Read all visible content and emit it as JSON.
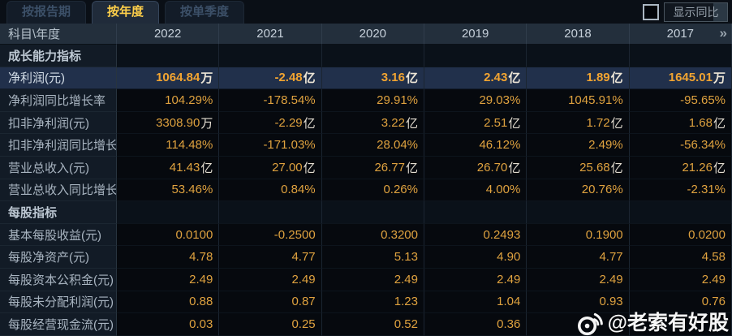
{
  "tabs": [
    {
      "label": "按报告期",
      "active": false
    },
    {
      "label": "按年度",
      "active": true
    },
    {
      "label": "按单季度",
      "active": false
    }
  ],
  "controls": {
    "show_yoy_label": "显示同比",
    "checkbox_checked": false
  },
  "table": {
    "corner_label": "科目\\年度",
    "years": [
      "2022",
      "2021",
      "2020",
      "2019",
      "2018",
      "2017"
    ],
    "more_columns_icon": "»",
    "rows": [
      {
        "type": "section",
        "label": "成长能力指标"
      },
      {
        "type": "data",
        "label": "净利润(元)",
        "highlight": true,
        "values": [
          "1064.84万",
          "-2.48亿",
          "3.16亿",
          "2.43亿",
          "1.89亿",
          "1645.01万"
        ]
      },
      {
        "type": "data",
        "label": "净利润同比增长率",
        "values": [
          "104.29%",
          "-178.54%",
          "29.91%",
          "29.03%",
          "1045.91%",
          "-95.65%"
        ]
      },
      {
        "type": "data",
        "label": "扣非净利润(元)",
        "values": [
          "3308.90万",
          "-2.29亿",
          "3.22亿",
          "2.51亿",
          "1.72亿",
          "1.68亿"
        ]
      },
      {
        "type": "data",
        "label": "扣非净利润同比增长率",
        "values": [
          "114.48%",
          "-171.03%",
          "28.04%",
          "46.12%",
          "2.49%",
          "-56.34%"
        ]
      },
      {
        "type": "data",
        "label": "营业总收入(元)",
        "values": [
          "41.43亿",
          "27.00亿",
          "26.77亿",
          "26.70亿",
          "25.68亿",
          "21.26亿"
        ]
      },
      {
        "type": "data",
        "label": "营业总收入同比增长率",
        "values": [
          "53.46%",
          "0.84%",
          "0.26%",
          "4.00%",
          "20.76%",
          "-2.31%"
        ]
      },
      {
        "type": "section",
        "label": "每股指标"
      },
      {
        "type": "data",
        "label": "基本每股收益(元)",
        "values": [
          "0.0100",
          "-0.2500",
          "0.3200",
          "0.2493",
          "0.1900",
          "0.0200"
        ]
      },
      {
        "type": "data",
        "label": "每股净资产(元)",
        "values": [
          "4.78",
          "4.77",
          "5.13",
          "4.90",
          "4.77",
          "4.58"
        ]
      },
      {
        "type": "data",
        "label": "每股资本公积金(元)",
        "values": [
          "2.49",
          "2.49",
          "2.49",
          "2.49",
          "2.49",
          "2.49"
        ]
      },
      {
        "type": "data",
        "label": "每股未分配利润(元)",
        "values": [
          "0.88",
          "0.87",
          "1.23",
          "1.04",
          "0.93",
          "0.76"
        ]
      },
      {
        "type": "data",
        "label": "每股经营现金流(元)",
        "values": [
          "0.03",
          "0.25",
          "0.52",
          "0.36",
          "",
          ""
        ]
      }
    ]
  },
  "watermark": {
    "handle": "@老索有好股",
    "icon": "weibo-icon"
  },
  "colors": {
    "value_orange": "#dfa23f",
    "highlight_value_orange": "#f2a431",
    "tab_active_gold": "#ffd04a",
    "highlight_row_bg": "#21304b",
    "header_bg": "#232f3c",
    "label_col_bg": "#121b26",
    "data_bg": "#06090e"
  }
}
